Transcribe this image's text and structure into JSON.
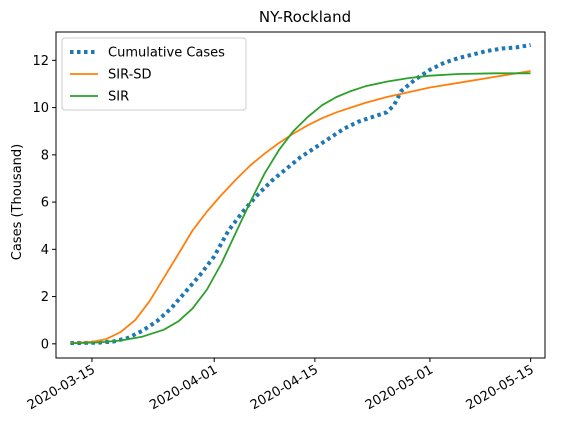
{
  "chart_data": {
    "type": "line",
    "title": "NY-Rockland",
    "xlabel": "",
    "ylabel": "Cases (Thousand)",
    "xlim": [
      "2020-03-10",
      "2020-05-17"
    ],
    "ylim": [
      -0.6,
      13.2
    ],
    "x_ticks": [
      "2020-03-15",
      "2020-04-01",
      "2020-04-15",
      "2020-05-01",
      "2020-05-15"
    ],
    "y_ticks": [
      0,
      2,
      4,
      6,
      8,
      10,
      12
    ],
    "grid": false,
    "legend_position": "top-left",
    "series": [
      {
        "name": "Cumulative Cases",
        "color": "#1f77b4",
        "style": "dotted",
        "points": [
          [
            "2020-03-12",
            0.03
          ],
          [
            "2020-03-14",
            0.04
          ],
          [
            "2020-03-16",
            0.05
          ],
          [
            "2020-03-18",
            0.1
          ],
          [
            "2020-03-20",
            0.25
          ],
          [
            "2020-03-22",
            0.55
          ],
          [
            "2020-03-24",
            0.95
          ],
          [
            "2020-03-26",
            1.5
          ],
          [
            "2020-03-28",
            2.2
          ],
          [
            "2020-03-30",
            2.9
          ],
          [
            "2020-04-01",
            3.7
          ],
          [
            "2020-04-03",
            4.8
          ],
          [
            "2020-04-05",
            5.6
          ],
          [
            "2020-04-07",
            6.3
          ],
          [
            "2020-04-09",
            6.9
          ],
          [
            "2020-04-11",
            7.4
          ],
          [
            "2020-04-13",
            7.9
          ],
          [
            "2020-04-15",
            8.3
          ],
          [
            "2020-04-17",
            8.7
          ],
          [
            "2020-04-19",
            9.1
          ],
          [
            "2020-04-21",
            9.4
          ],
          [
            "2020-04-23",
            9.6
          ],
          [
            "2020-04-25",
            9.8
          ],
          [
            "2020-04-26",
            10.1
          ],
          [
            "2020-04-27",
            10.7
          ],
          [
            "2020-04-29",
            11.2
          ],
          [
            "2020-05-01",
            11.6
          ],
          [
            "2020-05-03",
            11.9
          ],
          [
            "2020-05-05",
            12.1
          ],
          [
            "2020-05-07",
            12.25
          ],
          [
            "2020-05-09",
            12.4
          ],
          [
            "2020-05-11",
            12.5
          ],
          [
            "2020-05-13",
            12.55
          ],
          [
            "2020-05-15",
            12.65
          ]
        ]
      },
      {
        "name": "SIR-SD",
        "color": "#ff7f0e",
        "style": "solid",
        "points": [
          [
            "2020-03-12",
            0.03
          ],
          [
            "2020-03-15",
            0.08
          ],
          [
            "2020-03-17",
            0.2
          ],
          [
            "2020-03-19",
            0.5
          ],
          [
            "2020-03-21",
            1.0
          ],
          [
            "2020-03-23",
            1.8
          ],
          [
            "2020-03-25",
            2.8
          ],
          [
            "2020-03-27",
            3.8
          ],
          [
            "2020-03-29",
            4.8
          ],
          [
            "2020-03-31",
            5.6
          ],
          [
            "2020-04-02",
            6.3
          ],
          [
            "2020-04-04",
            6.95
          ],
          [
            "2020-04-06",
            7.55
          ],
          [
            "2020-04-08",
            8.05
          ],
          [
            "2020-04-10",
            8.5
          ],
          [
            "2020-04-12",
            8.9
          ],
          [
            "2020-04-14",
            9.25
          ],
          [
            "2020-04-16",
            9.55
          ],
          [
            "2020-04-18",
            9.8
          ],
          [
            "2020-04-20",
            10.0
          ],
          [
            "2020-04-22",
            10.2
          ],
          [
            "2020-04-25",
            10.45
          ],
          [
            "2020-04-28",
            10.65
          ],
          [
            "2020-05-01",
            10.85
          ],
          [
            "2020-05-05",
            11.05
          ],
          [
            "2020-05-10",
            11.3
          ],
          [
            "2020-05-15",
            11.55
          ]
        ]
      },
      {
        "name": "SIR",
        "color": "#2ca02c",
        "style": "solid",
        "points": [
          [
            "2020-03-12",
            0.02
          ],
          [
            "2020-03-16",
            0.06
          ],
          [
            "2020-03-19",
            0.14
          ],
          [
            "2020-03-22",
            0.3
          ],
          [
            "2020-03-25",
            0.6
          ],
          [
            "2020-03-27",
            0.95
          ],
          [
            "2020-03-29",
            1.5
          ],
          [
            "2020-03-31",
            2.3
          ],
          [
            "2020-04-02",
            3.4
          ],
          [
            "2020-04-04",
            4.7
          ],
          [
            "2020-04-06",
            6.0
          ],
          [
            "2020-04-08",
            7.2
          ],
          [
            "2020-04-10",
            8.2
          ],
          [
            "2020-04-12",
            9.0
          ],
          [
            "2020-04-14",
            9.6
          ],
          [
            "2020-04-16",
            10.1
          ],
          [
            "2020-04-18",
            10.45
          ],
          [
            "2020-04-20",
            10.7
          ],
          [
            "2020-04-22",
            10.9
          ],
          [
            "2020-04-25",
            11.1
          ],
          [
            "2020-04-28",
            11.25
          ],
          [
            "2020-05-01",
            11.35
          ],
          [
            "2020-05-05",
            11.42
          ],
          [
            "2020-05-10",
            11.45
          ],
          [
            "2020-05-15",
            11.45
          ]
        ]
      }
    ]
  }
}
